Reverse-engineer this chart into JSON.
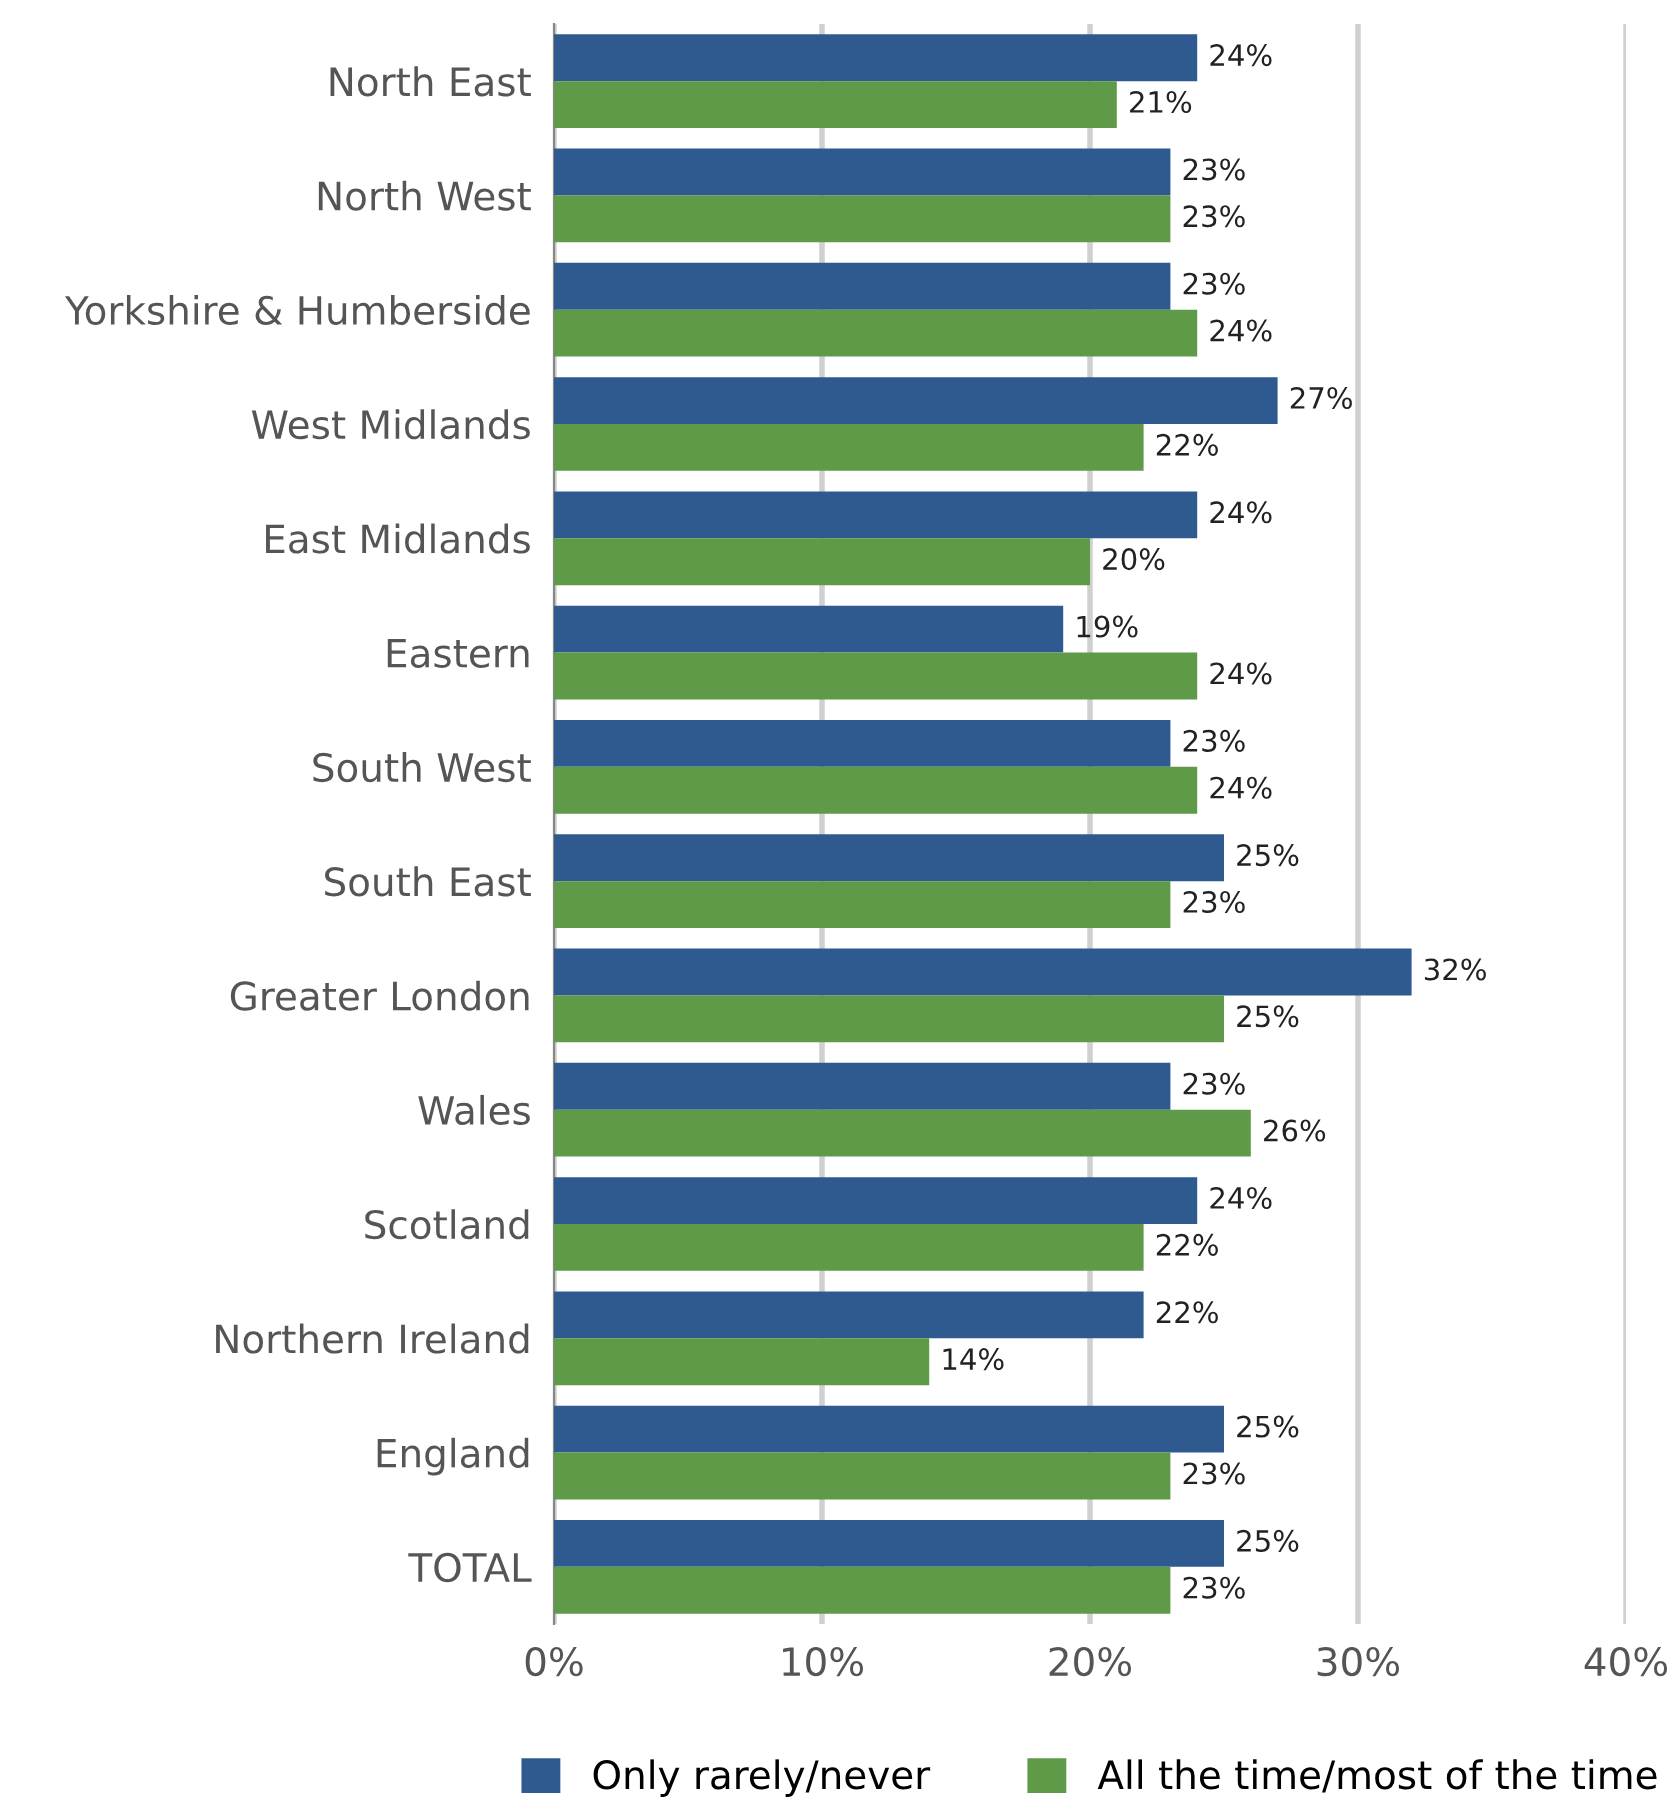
{
  "chart_data": {
    "type": "bar",
    "orientation": "horizontal",
    "categories": [
      "North East",
      "North West",
      "Yorkshire & Humberside",
      "West Midlands",
      "East Midlands",
      "Eastern",
      "South West",
      "South East",
      "Greater London",
      "Wales",
      "Scotland",
      "Northern Ireland",
      "England",
      "TOTAL"
    ],
    "series": [
      {
        "name": "Only rarely/never",
        "color": "#2e5a8f",
        "values": [
          24,
          23,
          23,
          27,
          24,
          19,
          23,
          25,
          32,
          23,
          24,
          22,
          25,
          25
        ],
        "value_labels": [
          "24%",
          "23%",
          "23%",
          "27%",
          "24%",
          "19%",
          "23%",
          "25%",
          "32%",
          "23%",
          "24%",
          "22%",
          "25%",
          "25%"
        ]
      },
      {
        "name": "All the time/most of the time",
        "color": "#5e9a48",
        "values": [
          21,
          23,
          24,
          22,
          20,
          24,
          24,
          23,
          25,
          26,
          22,
          14,
          23,
          23
        ],
        "value_labels": [
          "21%",
          "23%",
          "24%",
          "22%",
          "20%",
          "24%",
          "24%",
          "23%",
          "25%",
          "26%",
          "22%",
          "14%",
          "23%",
          "23%"
        ]
      }
    ],
    "xlim": [
      0,
      40
    ],
    "xticks": [
      {
        "value": 0,
        "label": "0%"
      },
      {
        "value": 10,
        "label": "10%"
      },
      {
        "value": 20,
        "label": "20%"
      },
      {
        "value": 30,
        "label": "30%"
      },
      {
        "value": 40,
        "label": "40%"
      }
    ],
    "grid": "x",
    "legend": "bottom"
  }
}
